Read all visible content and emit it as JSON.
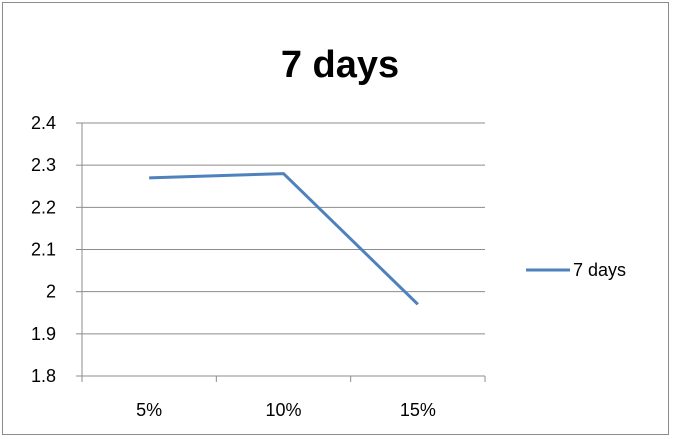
{
  "chart_data": {
    "type": "line",
    "title": "7 days",
    "xlabel": "",
    "ylabel": "",
    "categories": [
      "5%",
      "10%",
      "15%"
    ],
    "series": [
      {
        "name": "7 days",
        "values": [
          2.27,
          2.28,
          1.97
        ],
        "color": "#4f81bd"
      }
    ],
    "ylim": [
      1.8,
      2.4
    ],
    "yticks": [
      "1.8",
      "1.9",
      "2",
      "2.1",
      "2.2",
      "2.3",
      "2.4"
    ],
    "grid": true,
    "legend": "right"
  }
}
